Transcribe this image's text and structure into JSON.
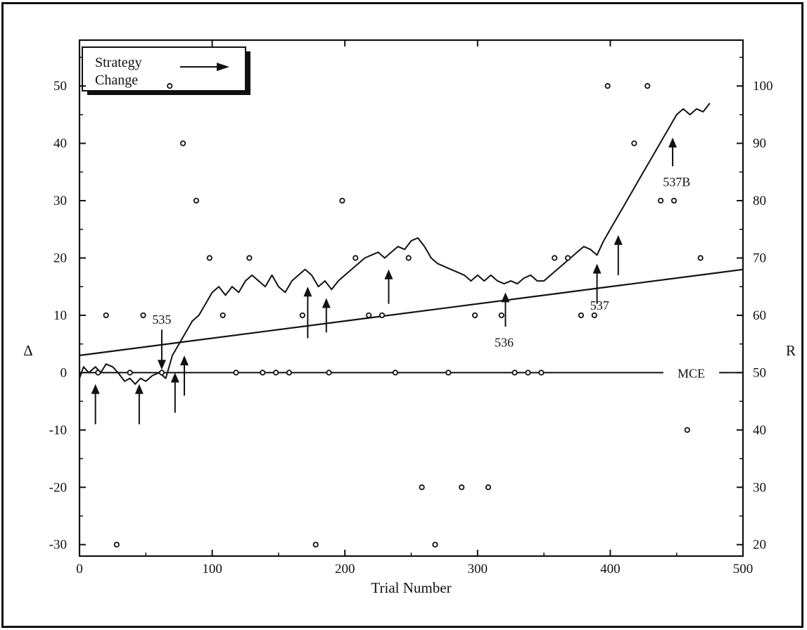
{
  "chart_data": {
    "type": "line",
    "xlabel": "Trial Number",
    "ylabel_left": "Δ",
    "ylabel_right": "R",
    "xlim": [
      0,
      500
    ],
    "ylim_left": [
      -32,
      58
    ],
    "ylim_right": [
      18,
      108
    ],
    "x_ticks": [
      "0",
      "100",
      "200",
      "300",
      "400",
      "500"
    ],
    "y_ticks_left": [
      "50",
      "40",
      "30",
      "20",
      "10",
      "0",
      "-10",
      "-20",
      "-30"
    ],
    "y_ticks_right": [
      "100",
      "90",
      "80",
      "70",
      "60",
      "50",
      "40",
      "30",
      "20"
    ],
    "legend": {
      "line1": "Strategy",
      "line2": "Change"
    },
    "reference_line": {
      "label": "MCE",
      "value": 0
    },
    "series": [
      {
        "kind": "cumulative-deviation",
        "points": [
          [
            0,
            -1
          ],
          [
            3,
            1
          ],
          [
            7,
            0
          ],
          [
            12,
            1
          ],
          [
            16,
            0
          ],
          [
            20,
            1.5
          ],
          [
            25,
            1
          ],
          [
            29,
            0
          ],
          [
            34,
            -1.5
          ],
          [
            38,
            -1
          ],
          [
            42,
            -2
          ],
          [
            46,
            -1
          ],
          [
            50,
            -1.5
          ],
          [
            55,
            -0.5
          ],
          [
            60,
            0
          ],
          [
            65,
            -1
          ],
          [
            70,
            3
          ],
          [
            75,
            5
          ],
          [
            80,
            7
          ],
          [
            85,
            9
          ],
          [
            90,
            10
          ],
          [
            95,
            12
          ],
          [
            100,
            14
          ],
          [
            105,
            15
          ],
          [
            110,
            13.5
          ],
          [
            115,
            15
          ],
          [
            120,
            14
          ],
          [
            125,
            16
          ],
          [
            130,
            17
          ],
          [
            135,
            16
          ],
          [
            140,
            15
          ],
          [
            145,
            17
          ],
          [
            150,
            15
          ],
          [
            155,
            14
          ],
          [
            160,
            16
          ],
          [
            165,
            17
          ],
          [
            170,
            18
          ],
          [
            175,
            17
          ],
          [
            180,
            15
          ],
          [
            185,
            16
          ],
          [
            190,
            14.5
          ],
          [
            195,
            16
          ],
          [
            200,
            17
          ],
          [
            205,
            18
          ],
          [
            210,
            19
          ],
          [
            215,
            20
          ],
          [
            220,
            20.5
          ],
          [
            225,
            21
          ],
          [
            230,
            20
          ],
          [
            235,
            21
          ],
          [
            240,
            22
          ],
          [
            245,
            21.5
          ],
          [
            250,
            23
          ],
          [
            255,
            23.5
          ],
          [
            260,
            22
          ],
          [
            265,
            20
          ],
          [
            270,
            19
          ],
          [
            275,
            18.5
          ],
          [
            280,
            18
          ],
          [
            285,
            17.5
          ],
          [
            290,
            17
          ],
          [
            295,
            16
          ],
          [
            300,
            17
          ],
          [
            305,
            16
          ],
          [
            310,
            17
          ],
          [
            315,
            16
          ],
          [
            320,
            15.5
          ],
          [
            325,
            16
          ],
          [
            330,
            15.5
          ],
          [
            335,
            16.5
          ],
          [
            340,
            17
          ],
          [
            345,
            16
          ],
          [
            350,
            16
          ],
          [
            355,
            17
          ],
          [
            360,
            18
          ],
          [
            365,
            19
          ],
          [
            370,
            20
          ],
          [
            375,
            21
          ],
          [
            380,
            22
          ],
          [
            385,
            21.5
          ],
          [
            390,
            20.5
          ],
          [
            395,
            23
          ],
          [
            400,
            25
          ],
          [
            405,
            27
          ],
          [
            410,
            29
          ],
          [
            415,
            31
          ],
          [
            420,
            33
          ],
          [
            425,
            35
          ],
          [
            430,
            37
          ],
          [
            435,
            39
          ],
          [
            440,
            41
          ],
          [
            445,
            43
          ],
          [
            450,
            45
          ],
          [
            455,
            46
          ],
          [
            460,
            45
          ],
          [
            465,
            46
          ],
          [
            470,
            45.5
          ],
          [
            475,
            47
          ]
        ]
      },
      {
        "kind": "regression-line",
        "points": [
          [
            0,
            3
          ],
          [
            500,
            18
          ]
        ]
      }
    ],
    "scatter_points": [
      [
        14,
        0
      ],
      [
        20,
        10
      ],
      [
        28,
        -30
      ],
      [
        38,
        0
      ],
      [
        48,
        10
      ],
      [
        62,
        0
      ],
      [
        68,
        50
      ],
      [
        78,
        40
      ],
      [
        88,
        30
      ],
      [
        98,
        20
      ],
      [
        108,
        10
      ],
      [
        118,
        0
      ],
      [
        128,
        20
      ],
      [
        138,
        0
      ],
      [
        148,
        0
      ],
      [
        158,
        0
      ],
      [
        168,
        10
      ],
      [
        178,
        -30
      ],
      [
        188,
        0
      ],
      [
        198,
        30
      ],
      [
        208,
        20
      ],
      [
        218,
        10
      ],
      [
        228,
        10
      ],
      [
        238,
        0
      ],
      [
        248,
        20
      ],
      [
        258,
        -20
      ],
      [
        268,
        -30
      ],
      [
        278,
        0
      ],
      [
        288,
        -20
      ],
      [
        298,
        10
      ],
      [
        308,
        -20
      ],
      [
        318,
        10
      ],
      [
        328,
        0
      ],
      [
        338,
        0
      ],
      [
        348,
        0
      ],
      [
        358,
        20
      ],
      [
        368,
        20
      ],
      [
        378,
        10
      ],
      [
        388,
        10
      ],
      [
        398,
        50
      ],
      [
        418,
        40
      ],
      [
        428,
        50
      ],
      [
        438,
        30
      ],
      [
        448,
        30
      ],
      [
        458,
        -10
      ],
      [
        468,
        20
      ]
    ],
    "strategy_change_arrows": [
      {
        "x": 12,
        "from": -9,
        "to": -2
      },
      {
        "x": 45,
        "from": -9,
        "to": -2
      },
      {
        "x": 72,
        "from": -7,
        "to": 0
      },
      {
        "x": 79,
        "from": -4,
        "to": 3
      },
      {
        "x": 172,
        "from": 6,
        "to": 15
      },
      {
        "x": 186,
        "from": 7,
        "to": 13
      },
      {
        "x": 233,
        "from": 12,
        "to": 18
      },
      {
        "x": 321,
        "from": 8,
        "to": 14
      },
      {
        "x": 390,
        "from": 12,
        "to": 19
      },
      {
        "x": 406,
        "from": 17,
        "to": 24
      },
      {
        "x": 447,
        "from": 36,
        "to": 41
      }
    ],
    "annotations": [
      {
        "text": "535",
        "x": 62,
        "y": 8.5
      },
      {
        "text": "536",
        "x": 320,
        "y": 4.5
      },
      {
        "text": "537",
        "x": 392,
        "y": 11
      },
      {
        "text": "537B",
        "x": 450,
        "y": 32.5
      }
    ],
    "down_arrow_535": {
      "x": 62,
      "from": 7.5,
      "to": 0.5
    }
  }
}
